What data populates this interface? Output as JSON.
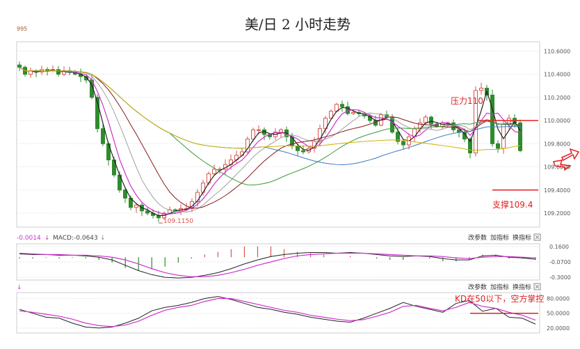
{
  "title": "美/日 2 小时走势",
  "top_left_label": "995",
  "annotations": {
    "resistance": "压力110",
    "support": "支撑109.4",
    "kd_note": "KD在50以下，空方掌控",
    "low_label": "109.1150"
  },
  "macd_header": {
    "left_value": "-0.0014",
    "macd_text": "MACD:-0.0643",
    "buttons": [
      "改参数",
      "加指标",
      "换指标"
    ]
  },
  "kd_header": {
    "buttons": [
      "改参数",
      "加指标",
      "换指标"
    ]
  },
  "colors": {
    "up_candle": "#d9534f",
    "down_candle": "#2e8b2e",
    "ma_black": "#222222",
    "ma_magenta": "#cc33cc",
    "ma_gray": "#a0a0a0",
    "ma_red": "#8b1a1a",
    "ma_green": "#3a9a3a",
    "ma_blue": "#3a7abf",
    "ma_yellow": "#d4b000",
    "annotation_red": "#e02020"
  },
  "chart_data": [
    {
      "type": "candlestick",
      "title": "美/日 2 小时走势",
      "y_ticks": [
        "110.6000",
        "110.4000",
        "110.2000",
        "110.0000",
        "109.8000",
        "109.6000",
        "109.4000",
        "109.2000"
      ],
      "ylim": [
        109.08,
        110.68
      ],
      "grid": true,
      "close_series": [
        110.46,
        110.4,
        110.43,
        110.42,
        110.44,
        110.43,
        110.44,
        110.4,
        110.43,
        110.42,
        110.4,
        110.38,
        110.35,
        110.2,
        109.93,
        109.8,
        109.66,
        109.53,
        109.4,
        109.33,
        109.25,
        109.27,
        109.22,
        109.2,
        109.18,
        109.16,
        109.2,
        109.23,
        109.22,
        109.24,
        109.24,
        109.3,
        109.38,
        109.46,
        109.54,
        109.58,
        109.58,
        109.62,
        109.66,
        109.7,
        109.73,
        109.84,
        109.92,
        109.92,
        109.88,
        109.86,
        109.9,
        109.92,
        109.86,
        109.78,
        109.74,
        109.73,
        109.76,
        109.82,
        109.93,
        110.02,
        110.08,
        110.14,
        110.12,
        110.06,
        110.07,
        110.06,
        110.04,
        110.0,
        109.96,
        110.05,
        110.03,
        109.9,
        109.82,
        109.79,
        109.86,
        109.93,
        109.98,
        110.03,
        109.97,
        109.95,
        109.98,
        109.98,
        109.92,
        109.9,
        109.84,
        109.72,
        110.26,
        110.28,
        110.22,
        109.8,
        109.76,
        109.97,
        110.02,
        109.98,
        109.74
      ],
      "ma_lines": [
        "black",
        "magenta",
        "gray",
        "darkred",
        "green",
        "blue",
        "yellow"
      ],
      "reference_lines": [
        {
          "label": "压力110",
          "value": 110.0
        },
        {
          "label": "支撑109.4",
          "value": 109.4
        }
      ],
      "low_annotation": {
        "label": "109.1150",
        "value": 109.115
      }
    },
    {
      "type": "macd",
      "y_ticks": [
        "0.1600",
        "-0.0700",
        "-0.3000"
      ],
      "ylim": [
        -0.34,
        0.2
      ],
      "dif": [
        0.05,
        0.04,
        0.04,
        0.03,
        0.03,
        0.02,
        0.0,
        -0.04,
        -0.12,
        -0.2,
        -0.26,
        -0.3,
        -0.31,
        -0.3,
        -0.27,
        -0.23,
        -0.17,
        -0.1,
        -0.04,
        0.01,
        0.04,
        0.06,
        0.07,
        0.07,
        0.06,
        0.07,
        0.06,
        0.04,
        0.02,
        0.01,
        0.02,
        0.01,
        -0.02,
        -0.04,
        -0.04,
        0.02,
        0.03,
        0.0,
        -0.01,
        -0.03
      ],
      "dea": [
        0.06,
        0.05,
        0.04,
        0.04,
        0.03,
        0.03,
        0.02,
        0.0,
        -0.04,
        -0.1,
        -0.17,
        -0.23,
        -0.27,
        -0.29,
        -0.29,
        -0.27,
        -0.23,
        -0.18,
        -0.12,
        -0.07,
        -0.02,
        0.02,
        0.04,
        0.05,
        0.06,
        0.06,
        0.06,
        0.05,
        0.04,
        0.03,
        0.02,
        0.02,
        0.01,
        -0.01,
        -0.02,
        0.0,
        0.01,
        0.01,
        0.0,
        -0.01
      ],
      "histogram": [
        -0.02,
        -0.02,
        -0.01,
        -0.02,
        -0.01,
        -0.02,
        -0.04,
        -0.08,
        -0.16,
        -0.2,
        -0.18,
        -0.14,
        -0.08,
        -0.02,
        0.04,
        0.08,
        0.12,
        0.16,
        0.16,
        0.16,
        0.12,
        0.08,
        0.06,
        0.04,
        0.0,
        0.02,
        0.0,
        -0.02,
        -0.04,
        -0.04,
        0.0,
        -0.02,
        -0.06,
        -0.06,
        -0.04,
        0.04,
        0.04,
        -0.02,
        -0.02,
        -0.04
      ]
    },
    {
      "type": "kd",
      "y_ticks": [
        "80.0000",
        "50.0000",
        "20.0000"
      ],
      "ylim": [
        10,
        92
      ],
      "k": [
        58,
        50,
        42,
        40,
        30,
        22,
        20,
        22,
        30,
        40,
        55,
        62,
        66,
        72,
        80,
        84,
        78,
        70,
        62,
        58,
        52,
        48,
        42,
        38,
        34,
        32,
        40,
        50,
        60,
        72,
        64,
        58,
        52,
        70,
        76,
        54,
        60,
        42,
        40,
        28
      ],
      "d": [
        55,
        52,
        48,
        44,
        38,
        30,
        25,
        23,
        26,
        34,
        46,
        56,
        62,
        66,
        74,
        80,
        80,
        74,
        68,
        62,
        56,
        52,
        46,
        42,
        38,
        35,
        37,
        44,
        52,
        64,
        66,
        60,
        55,
        62,
        72,
        64,
        60,
        52,
        46,
        36
      ],
      "reference_lines": [
        {
          "label": "KD在50以下，空方掌控",
          "value": 50
        }
      ]
    }
  ]
}
